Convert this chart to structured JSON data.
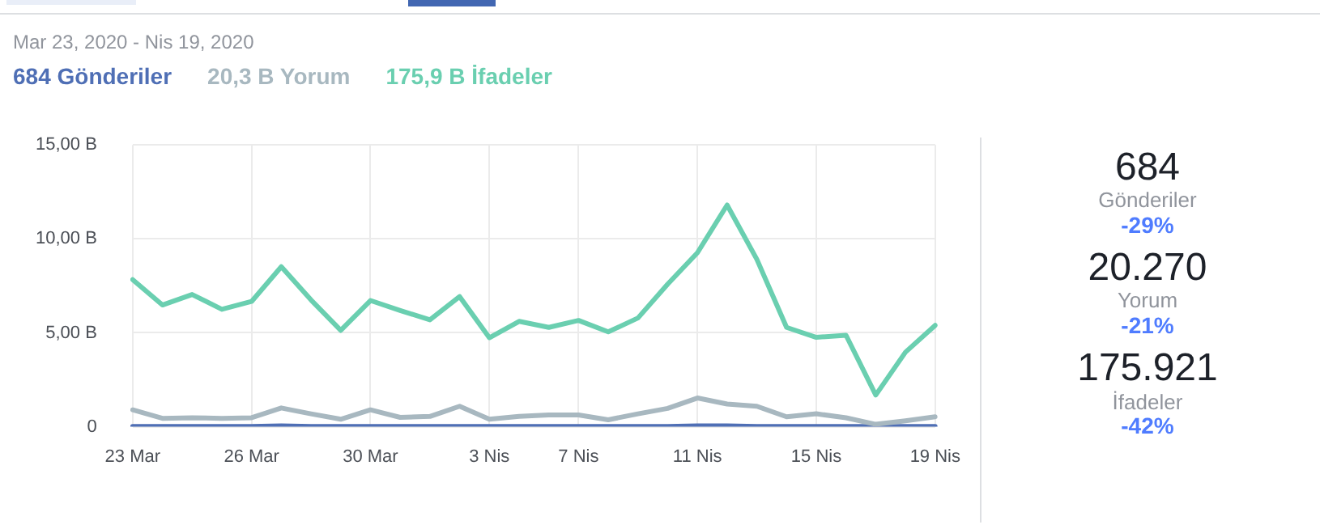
{
  "chart_data": [
    {
      "type": "line",
      "subtitle": "Mar 23, 2020 - Nis 19, 2020",
      "categories": [
        "23 Mar",
        null,
        null,
        null,
        "26 Mar",
        null,
        null,
        null,
        "30 Mar",
        null,
        null,
        null,
        "3 Nis",
        null,
        null,
        "7 Nis",
        null,
        null,
        null,
        "11 Nis",
        null,
        null,
        null,
        "15 Nis",
        null,
        null,
        null,
        "19 Nis"
      ],
      "series": [
        {
          "name": "684 Gönderiler",
          "color": "#4f6fb5",
          "values": [
            0.02,
            0.02,
            0.02,
            0.02,
            0.02,
            0.05,
            0.02,
            0.02,
            0.02,
            0.02,
            0.02,
            0.02,
            0.02,
            0.02,
            0.02,
            0.02,
            0.02,
            0.02,
            0.02,
            0.05,
            0.05,
            0.02,
            0.02,
            0.02,
            0.02,
            0.02,
            0.02,
            0.02
          ]
        },
        {
          "name": "20,3 B Yorum",
          "color": "#a8b8c0",
          "values": [
            0.9,
            0.45,
            0.48,
            0.45,
            0.48,
            1.0,
            0.69,
            0.4,
            0.9,
            0.5,
            0.55,
            1.09,
            0.4,
            0.55,
            0.63,
            0.63,
            0.37,
            0.69,
            0.98,
            1.53,
            1.21,
            1.09,
            0.53,
            0.69,
            0.48,
            0.13,
            0.32,
            0.53
          ]
        },
        {
          "name": "175,9 B İfadeler",
          "color": "#6acfb0",
          "values": [
            7.83,
            6.48,
            7.04,
            6.25,
            6.67,
            8.52,
            6.75,
            5.13,
            6.72,
            6.19,
            5.69,
            6.93,
            4.74,
            5.61,
            5.29,
            5.66,
            5.05,
            5.79,
            7.59,
            9.26,
            11.8,
            8.91,
            5.29,
            4.76,
            4.87,
            1.69,
            3.97,
            5.4
          ]
        }
      ],
      "ylim": [
        0,
        15
      ],
      "yticks": [
        {
          "value": 0,
          "label": "0"
        },
        {
          "value": 5,
          "label": "5,00 B"
        },
        {
          "value": 10,
          "label": "10,00 B"
        },
        {
          "value": 15,
          "label": "15,00 B"
        }
      ],
      "grid": true,
      "legend": "top",
      "marker": "none",
      "line_style": "solid"
    },
    {
      "type": "other",
      "annotations": [
        "684",
        "Gönderiler",
        "-29%",
        "20.270",
        "Yorum",
        "-21%",
        "175.921",
        "İfadeler",
        "-42%"
      ]
    }
  ]
}
